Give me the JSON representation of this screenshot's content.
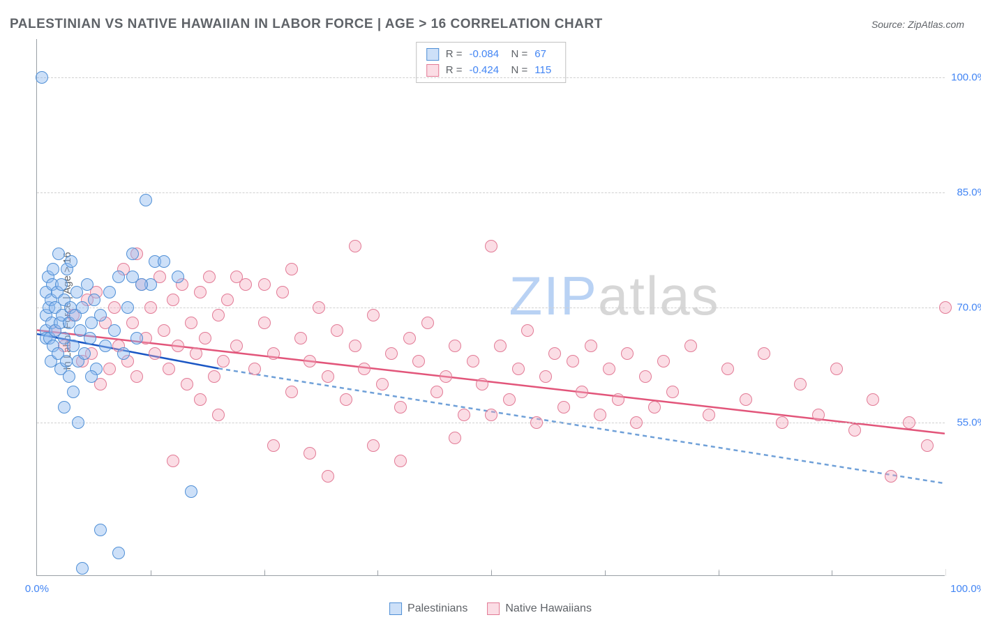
{
  "title": "PALESTINIAN VS NATIVE HAWAIIAN IN LABOR FORCE | AGE > 16 CORRELATION CHART",
  "source_label": "Source: ZipAtlas.com",
  "y_axis_label": "In Labor Force | Age > 16",
  "watermark": {
    "pre": "ZIP",
    "post": "atlas",
    "pre_color": "#b9d2f4",
    "post_color": "#d7d7d7"
  },
  "chart": {
    "type": "scatter",
    "background_color": "#ffffff",
    "grid_color_h": "#d0d0d0",
    "grid_color_v": "#e0e0e0",
    "axis_color": "#9aa0a6",
    "xlim": [
      0,
      100
    ],
    "ylim": [
      35,
      105
    ],
    "y_ticks": [
      55,
      70,
      85,
      100
    ],
    "y_tick_labels": [
      "55.0%",
      "70.0%",
      "85.0%",
      "100.0%"
    ],
    "x_ticks": [
      0,
      25,
      50,
      75,
      100
    ],
    "x_tick_labels": [
      "0.0%",
      "",
      "",
      "",
      "100.0%"
    ],
    "point_radius": 9,
    "point_border_width": 1.2,
    "series": [
      {
        "name": "Palestinians",
        "fill": "rgba(144,187,240,0.45)",
        "stroke": "#4f8fd6",
        "R": "-0.084",
        "N": "67",
        "trend": {
          "x1": 0,
          "y1": 66.5,
          "x2": 20,
          "y2": 62.0,
          "solid_color": "#1a56c4",
          "dash_color": "#6fa0d8",
          "dash_x2": 100,
          "dash_y2": 47.0,
          "width": 2.5
        },
        "points": [
          [
            0.5,
            100
          ],
          [
            1,
            67
          ],
          [
            1,
            66
          ],
          [
            1,
            69
          ],
          [
            1,
            72
          ],
          [
            1.2,
            74
          ],
          [
            1.3,
            70
          ],
          [
            1.4,
            66
          ],
          [
            1.5,
            63
          ],
          [
            1.5,
            71
          ],
          [
            1.6,
            68
          ],
          [
            1.7,
            73
          ],
          [
            1.8,
            65
          ],
          [
            1.8,
            75
          ],
          [
            2,
            70
          ],
          [
            2,
            67
          ],
          [
            2.2,
            72
          ],
          [
            2.3,
            64
          ],
          [
            2.4,
            77
          ],
          [
            2.5,
            68
          ],
          [
            2.6,
            62
          ],
          [
            2.7,
            73
          ],
          [
            2.8,
            69
          ],
          [
            3,
            66
          ],
          [
            3,
            71
          ],
          [
            3.2,
            63
          ],
          [
            3.3,
            75
          ],
          [
            3.5,
            68
          ],
          [
            3.5,
            61
          ],
          [
            3.7,
            70
          ],
          [
            3.8,
            76
          ],
          [
            4,
            65
          ],
          [
            4.2,
            69
          ],
          [
            4.4,
            72
          ],
          [
            4.5,
            63
          ],
          [
            4.8,
            67
          ],
          [
            5,
            70
          ],
          [
            5.2,
            64
          ],
          [
            5.5,
            73
          ],
          [
            5.8,
            66
          ],
          [
            6,
            68
          ],
          [
            6.3,
            71
          ],
          [
            6.5,
            62
          ],
          [
            7,
            69
          ],
          [
            7.5,
            65
          ],
          [
            8,
            72
          ],
          [
            8.5,
            67
          ],
          [
            9,
            74
          ],
          [
            9.5,
            64
          ],
          [
            10,
            70
          ],
          [
            10.5,
            77
          ],
          [
            11,
            66
          ],
          [
            12,
            84
          ],
          [
            12.5,
            73
          ],
          [
            13,
            76
          ],
          [
            4.5,
            55
          ],
          [
            5,
            36
          ],
          [
            7,
            41
          ],
          [
            9,
            38
          ],
          [
            3,
            57
          ],
          [
            4,
            59
          ],
          [
            6,
            61
          ],
          [
            10.5,
            74
          ],
          [
            11.5,
            73
          ],
          [
            14,
            76
          ],
          [
            15.5,
            74
          ],
          [
            17,
            46
          ]
        ]
      },
      {
        "name": "Native Hawaiians",
        "fill": "rgba(245,170,190,0.40)",
        "stroke": "#e27a95",
        "R": "-0.424",
        "N": "115",
        "trend": {
          "x1": 0,
          "y1": 67.0,
          "x2": 100,
          "y2": 53.5,
          "solid_color": "#e2557a",
          "width": 2.5
        },
        "points": [
          [
            2,
            67
          ],
          [
            3,
            65
          ],
          [
            4,
            69
          ],
          [
            5,
            63
          ],
          [
            5.5,
            71
          ],
          [
            6,
            64
          ],
          [
            6.5,
            72
          ],
          [
            7,
            60
          ],
          [
            7.5,
            68
          ],
          [
            8,
            62
          ],
          [
            8.5,
            70
          ],
          [
            9,
            65
          ],
          [
            9.5,
            75
          ],
          [
            10,
            63
          ],
          [
            10.5,
            68
          ],
          [
            11,
            61
          ],
          [
            11.5,
            73
          ],
          [
            12,
            66
          ],
          [
            12.5,
            70
          ],
          [
            13,
            64
          ],
          [
            11,
            77
          ],
          [
            13.5,
            74
          ],
          [
            14,
            67
          ],
          [
            14.5,
            62
          ],
          [
            15,
            71
          ],
          [
            15.5,
            65
          ],
          [
            16,
            73
          ],
          [
            16.5,
            60
          ],
          [
            17,
            68
          ],
          [
            17.5,
            64
          ],
          [
            18,
            72
          ],
          [
            18.5,
            66
          ],
          [
            19,
            74
          ],
          [
            19.5,
            61
          ],
          [
            20,
            69
          ],
          [
            20.5,
            63
          ],
          [
            21,
            71
          ],
          [
            22,
            65
          ],
          [
            23,
            73
          ],
          [
            24,
            62
          ],
          [
            25,
            68
          ],
          [
            26,
            64
          ],
          [
            27,
            72
          ],
          [
            28,
            59
          ],
          [
            29,
            66
          ],
          [
            30,
            63
          ],
          [
            31,
            70
          ],
          [
            32,
            61
          ],
          [
            33,
            67
          ],
          [
            34,
            58
          ],
          [
            35,
            65
          ],
          [
            36,
            62
          ],
          [
            37,
            69
          ],
          [
            38,
            60
          ],
          [
            39,
            64
          ],
          [
            40,
            57
          ],
          [
            41,
            66
          ],
          [
            42,
            63
          ],
          [
            43,
            68
          ],
          [
            44,
            59
          ],
          [
            45,
            61
          ],
          [
            46,
            65
          ],
          [
            47,
            56
          ],
          [
            48,
            63
          ],
          [
            49,
            60
          ],
          [
            50,
            78
          ],
          [
            51,
            65
          ],
          [
            52,
            58
          ],
          [
            53,
            62
          ],
          [
            54,
            67
          ],
          [
            55,
            55
          ],
          [
            56,
            61
          ],
          [
            57,
            64
          ],
          [
            58,
            57
          ],
          [
            59,
            63
          ],
          [
            60,
            59
          ],
          [
            61,
            65
          ],
          [
            62,
            56
          ],
          [
            63,
            62
          ],
          [
            64,
            58
          ],
          [
            65,
            64
          ],
          [
            66,
            55
          ],
          [
            67,
            61
          ],
          [
            68,
            57
          ],
          [
            69,
            63
          ],
          [
            70,
            59
          ],
          [
            72,
            65
          ],
          [
            74,
            56
          ],
          [
            76,
            62
          ],
          [
            78,
            58
          ],
          [
            80,
            64
          ],
          [
            82,
            55
          ],
          [
            84,
            60
          ],
          [
            86,
            56
          ],
          [
            88,
            62
          ],
          [
            90,
            54
          ],
          [
            92,
            58
          ],
          [
            94,
            48
          ],
          [
            96,
            55
          ],
          [
            98,
            52
          ],
          [
            100,
            70
          ],
          [
            25,
            73
          ],
          [
            30,
            51
          ],
          [
            35,
            78
          ],
          [
            32,
            48
          ],
          [
            37,
            52
          ],
          [
            40,
            50
          ],
          [
            22,
            74
          ],
          [
            20,
            56
          ],
          [
            18,
            58
          ],
          [
            15,
            50
          ],
          [
            46,
            53
          ],
          [
            50,
            56
          ],
          [
            28,
            75
          ],
          [
            26,
            52
          ]
        ]
      }
    ]
  },
  "legend_bottom": [
    {
      "label": "Palestinians",
      "fill": "rgba(144,187,240,0.45)",
      "stroke": "#4f8fd6"
    },
    {
      "label": "Native Hawaiians",
      "fill": "rgba(245,170,190,0.40)",
      "stroke": "#e27a95"
    }
  ]
}
